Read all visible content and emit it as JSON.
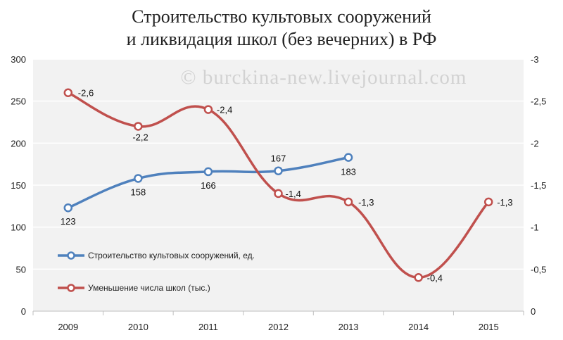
{
  "chart_data": {
    "type": "line",
    "title_lines": [
      "Строительство культовых сооружений",
      "и ликвидация школ (без вечерних) в РФ"
    ],
    "watermark": "© burckina-new.livejournal.com",
    "categories": [
      "2009",
      "2010",
      "2011",
      "2012",
      "2013",
      "2014",
      "2015"
    ],
    "y_left": {
      "min": 0,
      "max": 300,
      "step": 50,
      "tick_labels": [
        "0",
        "50",
        "100",
        "150",
        "200",
        "250",
        "300"
      ]
    },
    "y_right": {
      "min": 0,
      "max": -3,
      "step": -0.5,
      "tick_labels": [
        "0",
        "-0,5",
        "-1",
        "-1,5",
        "-2",
        "-2,5",
        "-3"
      ]
    },
    "grid": true,
    "legend_position": "bottom-left",
    "series": [
      {
        "name": "Строительство культовых сооружений, ед.",
        "axis": "left",
        "color": "#4f81bd",
        "values": [
          123,
          158,
          166,
          167,
          183,
          null,
          null
        ],
        "labels": [
          "123",
          "158",
          "166",
          "167",
          "183",
          null,
          null
        ]
      },
      {
        "name": "Уменьшение числа школ (тыс.)",
        "axis": "right",
        "color": "#c0504d",
        "values": [
          -2.6,
          -2.2,
          -2.4,
          -1.4,
          -1.3,
          -0.4,
          -1.3
        ],
        "labels": [
          "-2,6",
          "-2,2",
          "-2,4",
          "-1,4",
          "-1,3",
          "-0,4",
          "-1,3"
        ]
      }
    ]
  }
}
